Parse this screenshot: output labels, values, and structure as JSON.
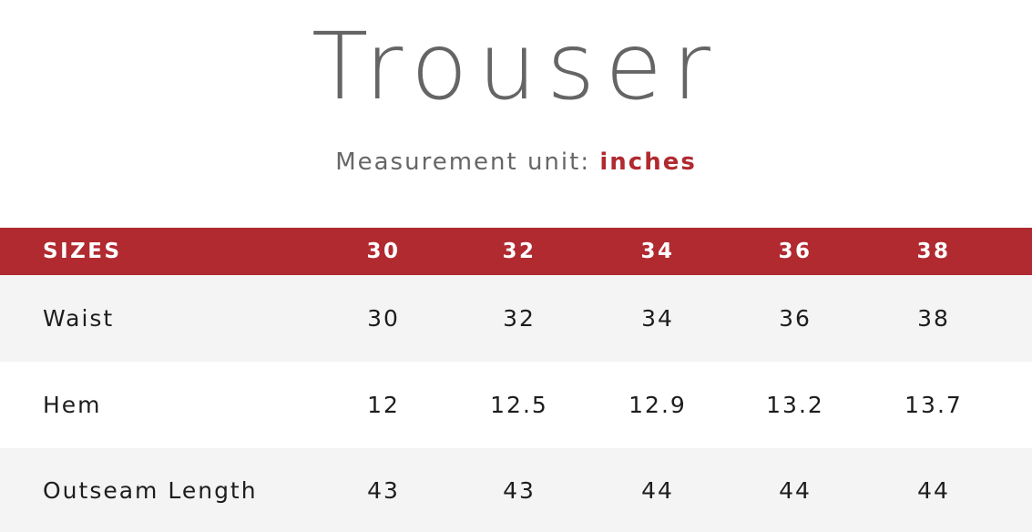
{
  "title": "Trouser",
  "unit": {
    "label": "Measurement unit:",
    "value": "inches",
    "accent_color": "#b02a30"
  },
  "table": {
    "header_label": "SIZES",
    "sizes": [
      "30",
      "32",
      "34",
      "36",
      "38"
    ],
    "rows": [
      {
        "label": "Waist",
        "values": [
          "30",
          "32",
          "34",
          "36",
          "38"
        ]
      },
      {
        "label": "Hem",
        "values": [
          "12",
          "12.5",
          "12.9",
          "13.2",
          "13.7"
        ]
      },
      {
        "label": "Outseam Length",
        "values": [
          "43",
          "43",
          "44",
          "44",
          "44"
        ]
      }
    ]
  }
}
